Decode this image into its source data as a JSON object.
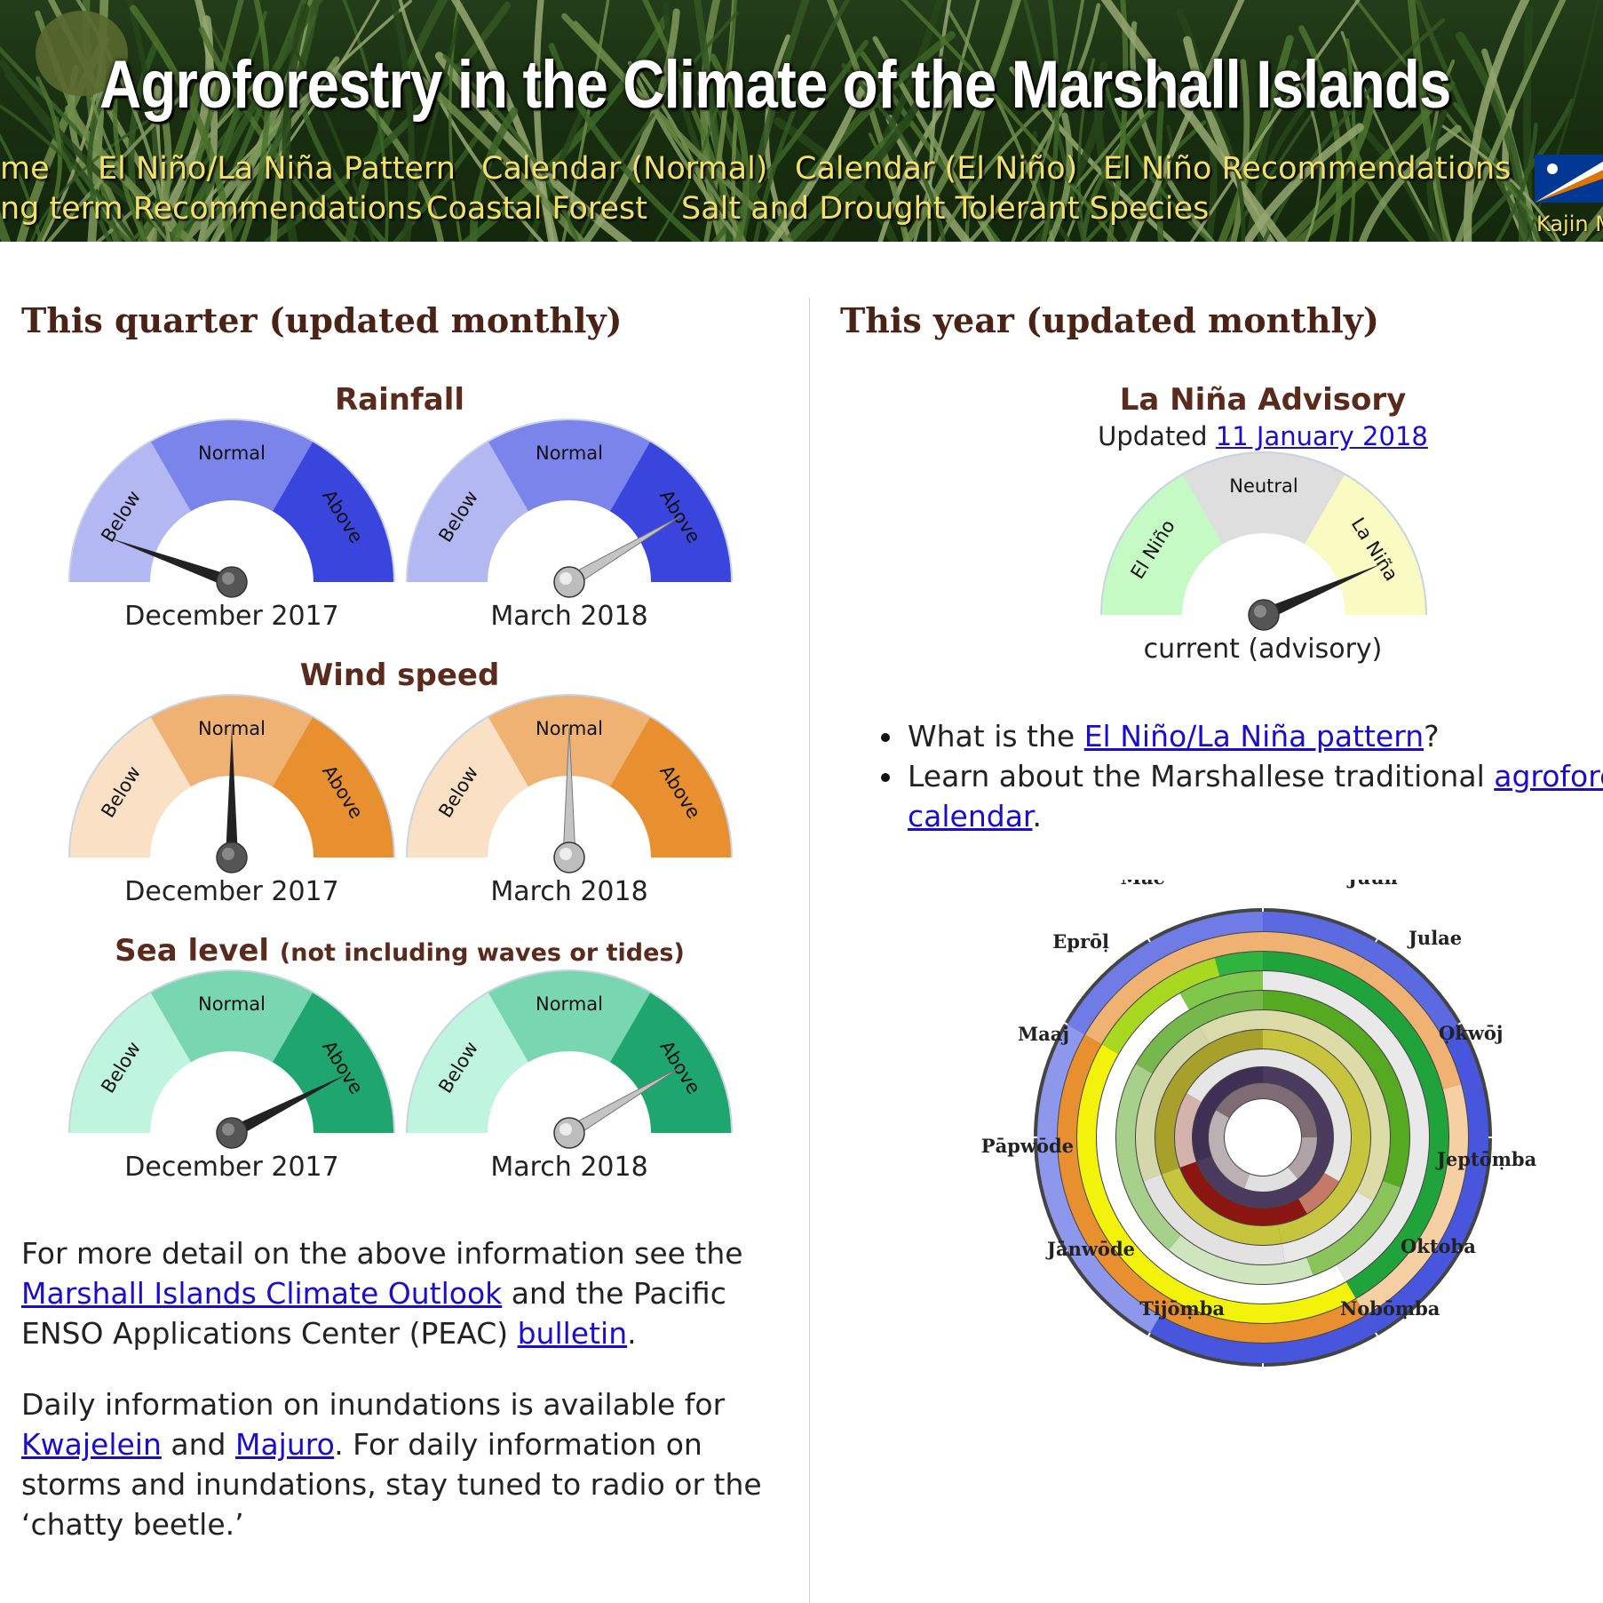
{
  "header": {
    "title": "Agroforestry in the Climate of the Marshall Islands",
    "nav_row1": [
      "me",
      "El Niño/La Niña Pattern",
      "Calendar (Normal)",
      "Calendar (El Niño)",
      "El Niño Recommendations"
    ],
    "nav_row2": [
      "ng term Recommendations",
      "Coastal Forest",
      "Salt and Drought Tolerant Species"
    ],
    "language_label": "Kajin M"
  },
  "left": {
    "title": "This quarter (updated monthly)",
    "groups": [
      {
        "title": "Rainfall",
        "subtitle": "",
        "colors": [
          "#b3b8f2",
          "#7b84ea",
          "#3a45dd"
        ],
        "segments": [
          "Below",
          "Normal",
          "Above"
        ],
        "gauges": [
          {
            "caption": "December 2017",
            "value": 0.11,
            "style": "dark"
          },
          {
            "caption": "March 2018",
            "value": 0.83,
            "style": "light"
          }
        ]
      },
      {
        "title": "Wind speed",
        "subtitle": "",
        "colors": [
          "#fae1c6",
          "#f0b272",
          "#e88f30"
        ],
        "segments": [
          "Below",
          "Normal",
          "Above"
        ],
        "gauges": [
          {
            "caption": "December 2017",
            "value": 0.5,
            "style": "dark"
          },
          {
            "caption": "March 2018",
            "value": 0.5,
            "style": "light"
          }
        ]
      },
      {
        "title": "Sea level",
        "subtitle": "(not including waves or tides)",
        "colors": [
          "#bff5df",
          "#78d6b0",
          "#1fa56e"
        ],
        "segments": [
          "Below",
          "Normal",
          "Above"
        ],
        "gauges": [
          {
            "caption": "December 2017",
            "value": 0.85,
            "style": "dark"
          },
          {
            "caption": "March 2018",
            "value": 0.83,
            "style": "light"
          }
        ]
      }
    ],
    "para1": {
      "text1": "For more detail on the above information see the ",
      "link1": "Marshall Islands Climate Outlook",
      "text2": " and the Pacific ENSO Applications Center (PEAC) ",
      "link2": "bulletin",
      "text3": "."
    },
    "para2": {
      "text1": "Daily information on inundations is available for ",
      "link1": "Kwajelein",
      "text2": " and ",
      "link2": "Majuro",
      "text3": ". For daily information on storms and inundations, stay tuned to radio or the ‘chatty beetle.’"
    }
  },
  "right": {
    "title": "This year (updated monthly)",
    "advisory": {
      "title": "La Niña Advisory",
      "updated_prefix": "Updated ",
      "updated_link": "11 January 2018",
      "segments": [
        "El Niño",
        "Neutral",
        "La Niña"
      ],
      "colors": [
        "#c6fac4",
        "#dedede",
        "#fafbc2"
      ],
      "caption": "current (advisory)",
      "value": 0.87
    },
    "bullets": {
      "b1_text1": "What is the ",
      "b1_link": "El Niño/La Niña pattern",
      "b1_text2": "?",
      "b2_text1": "Learn about the Marshallese traditional ",
      "b2_link1": "agroforestry",
      "b2_link2": "calendar",
      "b2_text2": "."
    },
    "calendar": {
      "months": [
        "Juun",
        "Julae",
        "Ọkwōj",
        "Jeptōṃba",
        "Oktoba",
        "Nobōṃba",
        "Tijōṃba",
        "Jānwōde",
        "Pāpwōde",
        "Maaj",
        "Eprōḷ",
        "Māe"
      ]
    }
  }
}
